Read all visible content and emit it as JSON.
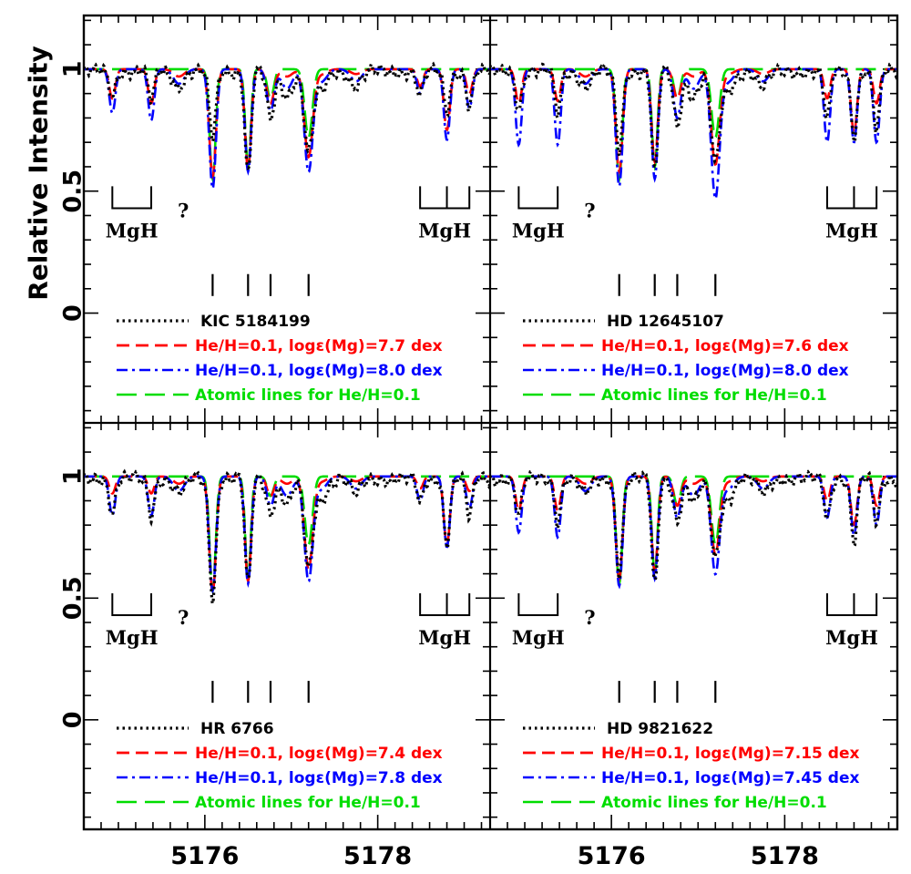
{
  "chart_data": {
    "type": "line",
    "description_axes": {
      "xlabel": "",
      "ylabel": "Relative Intensity",
      "xlim": [
        5174.6,
        5179.3
      ],
      "ylim": [
        -0.45,
        1.22
      ],
      "x_ticks": [
        5176,
        5178
      ],
      "y_ticks": [
        0,
        0.5,
        1
      ]
    },
    "colors": {
      "observed": "#000000",
      "model_low": "#ff0000",
      "model_high": "#0000ff",
      "atomic": "#00dd00"
    },
    "annotations": {
      "mgh_label": "MgH",
      "question_mark": "?",
      "mgh_left_bracket_x": [
        5174.93,
        5175.38
      ],
      "mgh_right_bracket_x": [
        5178.49,
        5178.8,
        5179.06
      ],
      "line_marker_x": [
        5176.09,
        5176.5,
        5176.76,
        5177.2
      ]
    },
    "panels": [
      {
        "position": "top-left",
        "legend": [
          {
            "style": "dotted",
            "color": "#000000",
            "label": "KIC 5184199"
          },
          {
            "style": "dashed",
            "color": "#ff0000",
            "label": "He/H=0.1, logε(Mg)=7.7 dex"
          },
          {
            "style": "dash-dot",
            "color": "#0000ff",
            "label": "He/H=0.1, logε(Mg)=8.0 dex"
          },
          {
            "style": "long-dash",
            "color": "#00dd00",
            "label": "Atomic lines for He/H=0.1"
          }
        ],
        "line_depths": {
          "observed": [
            0.73,
            0.58,
            0.8,
            0.67
          ],
          "model_low": [
            0.56,
            0.59,
            0.86,
            0.64
          ],
          "model_high": [
            0.51,
            0.58,
            0.83,
            0.58
          ],
          "atomic": [
            0.55,
            0.6,
            0.88,
            0.72
          ]
        },
        "mgh_depths": {
          "observed": [
            0.9,
            0.88,
            0.9,
            0.84,
            0.86
          ],
          "model_low": [
            0.88,
            0.86,
            0.93,
            0.75,
            0.9
          ],
          "model_high": [
            0.82,
            0.79,
            0.9,
            0.71,
            0.84
          ]
        }
      },
      {
        "position": "top-right",
        "legend": [
          {
            "style": "dotted",
            "color": "#000000",
            "label": "HD 12645107"
          },
          {
            "style": "dashed",
            "color": "#ff0000",
            "label": "He/H=0.1, logε(Mg)=7.6 dex"
          },
          {
            "style": "dash-dot",
            "color": "#0000ff",
            "label": "He/H=0.1, logε(Mg)=8.0 dex"
          },
          {
            "style": "long-dash",
            "color": "#00dd00",
            "label": "Atomic lines for He/H=0.1"
          }
        ],
        "line_depths": {
          "observed": [
            0.68,
            0.58,
            0.78,
            0.62
          ],
          "model_low": [
            0.58,
            0.62,
            0.88,
            0.61
          ],
          "model_high": [
            0.52,
            0.55,
            0.8,
            0.47
          ],
          "atomic": [
            0.55,
            0.6,
            0.88,
            0.72
          ]
        },
        "mgh_depths": {
          "observed": [
            0.85,
            0.83,
            0.8,
            0.74,
            0.76
          ],
          "model_low": [
            0.86,
            0.87,
            0.88,
            0.74,
            0.86
          ],
          "model_high": [
            0.69,
            0.69,
            0.7,
            0.7,
            0.7
          ]
        }
      },
      {
        "position": "bottom-left",
        "legend": [
          {
            "style": "dotted",
            "color": "#000000",
            "label": "HR 6766"
          },
          {
            "style": "dashed",
            "color": "#ff0000",
            "label": "He/H=0.1, logε(Mg)=7.4 dex"
          },
          {
            "style": "dash-dot",
            "color": "#0000ff",
            "label": "He/H=0.1, logε(Mg)=7.8 dex"
          },
          {
            "style": "long-dash",
            "color": "#00dd00",
            "label": "Atomic lines for He/H=0.1"
          }
        ],
        "line_depths": {
          "observed": [
            0.52,
            0.56,
            0.86,
            0.63
          ],
          "model_low": [
            0.52,
            0.57,
            0.92,
            0.62
          ],
          "model_high": [
            0.53,
            0.56,
            0.88,
            0.57
          ],
          "atomic": [
            0.53,
            0.58,
            0.92,
            0.72
          ]
        },
        "mgh_depths": {
          "observed": [
            0.86,
            0.85,
            0.9,
            0.74,
            0.84
          ],
          "model_low": [
            0.93,
            0.93,
            0.95,
            0.72,
            0.94
          ],
          "model_high": [
            0.84,
            0.84,
            0.9,
            0.71,
            0.87
          ]
        }
      },
      {
        "position": "bottom-right",
        "legend": [
          {
            "style": "dotted",
            "color": "#000000",
            "label": "HD 9821622"
          },
          {
            "style": "dashed",
            "color": "#ff0000",
            "label": "He/H=0.1, logε(Mg)=7.15 dex"
          },
          {
            "style": "dash-dot",
            "color": "#0000ff",
            "label": "He/H=0.1, logε(Mg)=7.45 dex"
          },
          {
            "style": "long-dash",
            "color": "#00dd00",
            "label": "Atomic lines for He/H=0.1"
          }
        ],
        "line_depths": {
          "observed": [
            0.62,
            0.56,
            0.83,
            0.68
          ],
          "model_low": [
            0.58,
            0.61,
            0.88,
            0.68
          ],
          "model_high": [
            0.55,
            0.58,
            0.83,
            0.6
          ],
          "atomic": [
            0.56,
            0.6,
            0.88,
            0.72
          ]
        },
        "mgh_depths": {
          "observed": [
            0.85,
            0.83,
            0.84,
            0.74,
            0.82
          ],
          "model_low": [
            0.86,
            0.86,
            0.9,
            0.8,
            0.88
          ],
          "model_high": [
            0.77,
            0.75,
            0.83,
            0.76,
            0.8
          ]
        }
      }
    ]
  }
}
